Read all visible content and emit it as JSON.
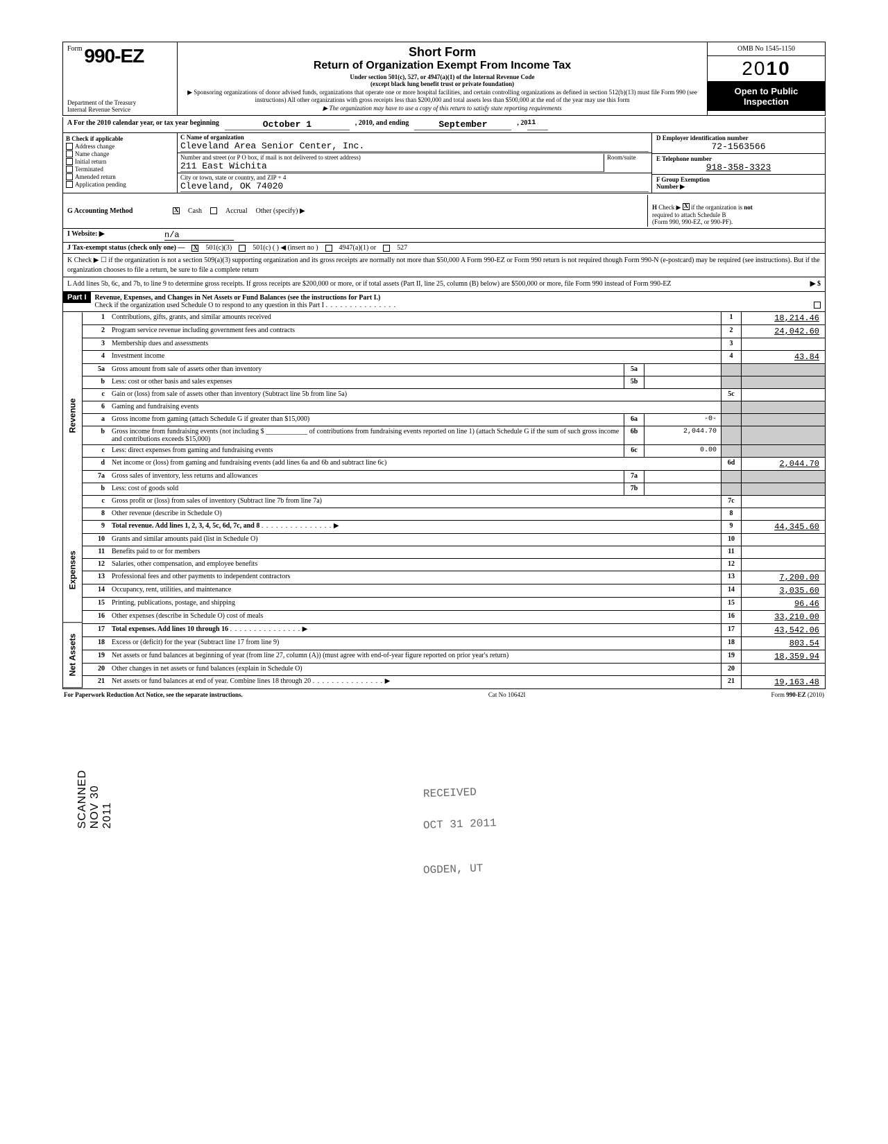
{
  "header": {
    "form_label": "Form",
    "form_number": "990-EZ",
    "dept": "Department of the Treasury\nInternal Revenue Service",
    "title1": "Short Form",
    "title2": "Return of Organization Exempt From Income Tax",
    "sub1": "Under section 501(c), 527, or 4947(a)(1) of the Internal Revenue Code\n(except black lung benefit trust or private foundation)",
    "sub2": "▶ Sponsoring organizations of donor advised funds, organizations that operate one or more hospital facilities, and certain controlling organizations as defined in section 512(b)(13) must file Form 990 (see instructions)\nAll other organizations with gross receipts less than $200,000 and total assets less than $500,000 at the end of the year may use this form",
    "sub3": "▶ The organization may have to use a copy of this return to satisfy state reporting requirements",
    "omb": "OMB No  1545-1150",
    "year_prefix": "20",
    "year_bold": "10",
    "open": "Open to Public\nInspection"
  },
  "A": {
    "text1": "A  For the 2010 calendar year, or tax year beginning",
    "begin": "October 1",
    "text2": ", 2010, and ending",
    "end": "September",
    "text3": ", 20",
    "endyr": "11"
  },
  "B": {
    "label": "B  Check if applicable",
    "items": [
      "Address change",
      "Name change",
      "Initial return",
      "Terminated",
      "Amended return",
      "Application pending"
    ]
  },
  "C": {
    "name_label": "C  Name of organization",
    "name": "Cleveland Area Senior Center, Inc.",
    "addr_label": "Number and street (or P O  box, if mail is not delivered to street address)",
    "room_label": "Room/suite",
    "addr": "211 East Wichita",
    "city_label": "City or town, state or country, and ZIP + 4",
    "city": "Cleveland, OK    74020"
  },
  "D": {
    "label": "D  Employer identification number",
    "value": "72-1563566"
  },
  "E": {
    "label": "E  Telephone number",
    "value": "918-358-3323"
  },
  "F": {
    "label": "F  Group Exemption\n    Number ▶",
    "value": ""
  },
  "G": {
    "label": "G  Accounting Method",
    "cash": "Cash",
    "accrual": "Accrual",
    "other": "Other (specify) ▶"
  },
  "H": {
    "text": "H  Check ▶      if the organization is not\n   required to attach Schedule B\n   (Form 990, 990-EZ, or 990-PF)."
  },
  "I": {
    "label": "I   Website: ▶",
    "value": "n/a"
  },
  "J": {
    "label": "J  Tax-exempt status (check only one) —",
    "opt1": "501(c)(3)",
    "opt2": "501(c) (       )  ◀ (insert no )",
    "opt3": "4947(a)(1) or",
    "opt4": "527"
  },
  "K": {
    "text": "K  Check ▶  ☐    if the organization is not a section 509(a)(3) supporting organization and its gross receipts are normally not more than $50,000   A Form 990-EZ or Form 990 return is not required though Form 990-N (e-postcard) may be required (see instructions). But if the organization chooses to file a return, be sure to file a complete return"
  },
  "L": {
    "text": "L  Add lines 5b, 6c, and 7b, to line 9 to determine gross receipts. If gross receipts are $200,000 or more, or if total assets (Part II, line 25, column (B) below) are $500,000 or more, file Form 990 instead of Form 990-EZ",
    "arrow": "▶ $"
  },
  "part1": {
    "hdr": "Part I",
    "title": "Revenue, Expenses, and Changes in Net Assets or Fund Balances (see the instructions for Part I.)",
    "check": "Check if the organization used Schedule O to respond to any question in this Part I"
  },
  "sideLabels": {
    "rev": "Revenue",
    "exp": "Expenses",
    "na": "Net Assets"
  },
  "lines": {
    "1": {
      "n": "1",
      "d": "Contributions, gifts, grants, and similar amounts received",
      "v": "18,214.46"
    },
    "2": {
      "n": "2",
      "d": "Program service revenue including government fees and contracts",
      "v": "24,042.60"
    },
    "3": {
      "n": "3",
      "d": "Membership dues and assessments",
      "v": ""
    },
    "4": {
      "n": "4",
      "d": "Investment income",
      "v": "43.84"
    },
    "5a": {
      "n": "5a",
      "d": "Gross amount from sale of assets other than inventory",
      "box": "5a",
      "bv": ""
    },
    "5b": {
      "n": "b",
      "d": "Less: cost or other basis and sales expenses",
      "box": "5b",
      "bv": ""
    },
    "5c": {
      "n": "c",
      "d": "Gain or (loss) from sale of assets other than inventory (Subtract line 5b from line 5a)",
      "rn": "5c",
      "v": ""
    },
    "6": {
      "n": "6",
      "d": "Gaming and fundraising events"
    },
    "6a": {
      "n": "a",
      "d": "Gross income from gaming (attach Schedule G if greater than $15,000)",
      "box": "6a",
      "bv": "-0-"
    },
    "6b": {
      "n": "b",
      "d": "Gross income from fundraising events (not including $ ____________ of contributions from fundraising events reported on line 1) (attach Schedule G if the sum of such gross income and contributions exceeds $15,000)",
      "box": "6b",
      "bv": "2,044.70"
    },
    "6c": {
      "n": "c",
      "d": "Less: direct expenses from gaming and fundraising events",
      "box": "6c",
      "bv": "0.00"
    },
    "6d": {
      "n": "d",
      "d": "Net income or (loss) from gaming and fundraising events (add lines 6a and 6b and subtract line 6c)",
      "rn": "6d",
      "v": "2,044.70"
    },
    "7a": {
      "n": "7a",
      "d": "Gross sales of inventory, less returns and allowances",
      "box": "7a",
      "bv": ""
    },
    "7b": {
      "n": "b",
      "d": "Less: cost of goods sold",
      "box": "7b",
      "bv": ""
    },
    "7c": {
      "n": "c",
      "d": "Gross profit or (loss) from sales of inventory (Subtract line 7b from line 7a)",
      "rn": "7c",
      "v": ""
    },
    "8": {
      "n": "8",
      "d": "Other revenue (describe in Schedule O)",
      "v": ""
    },
    "9": {
      "n": "9",
      "d": "Total revenue. Add lines 1, 2, 3, 4, 5c, 6d, 7c, and 8",
      "v": "44,345.60",
      "bold": true,
      "arrow": true
    },
    "10": {
      "n": "10",
      "d": "Grants and similar amounts paid (list in Schedule O)",
      "v": ""
    },
    "11": {
      "n": "11",
      "d": "Benefits paid to or for members",
      "v": ""
    },
    "12": {
      "n": "12",
      "d": "Salaries, other compensation, and employee benefits",
      "v": ""
    },
    "13": {
      "n": "13",
      "d": "Professional fees and other payments to independent contractors",
      "v": "7,200.00"
    },
    "14": {
      "n": "14",
      "d": "Occupancy, rent, utilities, and maintenance",
      "v": "3,035.60"
    },
    "15": {
      "n": "15",
      "d": "Printing, publications, postage, and shipping",
      "v": "96.46"
    },
    "16": {
      "n": "16",
      "d": "Other expenses (describe in Schedule O)    cost of meals",
      "v": "33,210.00"
    },
    "17": {
      "n": "17",
      "d": "Total expenses. Add lines 10 through 16",
      "v": "43,542.06",
      "bold": true,
      "arrow": true
    },
    "18": {
      "n": "18",
      "d": "Excess or (deficit) for the year (Subtract line 17 from line 9)",
      "v": "803.54"
    },
    "19": {
      "n": "19",
      "d": "Net assets or fund balances at beginning of year (from line 27, column (A)) (must agree with end-of-year figure reported on prior year's return)",
      "v": "18,359.94"
    },
    "20": {
      "n": "20",
      "d": "Other changes in net assets or fund balances (explain in Schedule O)",
      "v": ""
    },
    "21": {
      "n": "21",
      "d": "Net assets or fund balances at end of year. Combine lines 18 through 20",
      "v": "19,163.48",
      "arrow": true
    }
  },
  "stamps": {
    "recv": "RECEIVED",
    "date": "OCT 31 2011",
    "ogden": "OGDEN, UT",
    "scan": "SCANNED NOV 30 2011"
  },
  "footer": {
    "left": "For Paperwork Reduction Act Notice, see the separate instructions.",
    "mid": "Cat No  10642I",
    "right": "Form 990-EZ (2010)"
  }
}
